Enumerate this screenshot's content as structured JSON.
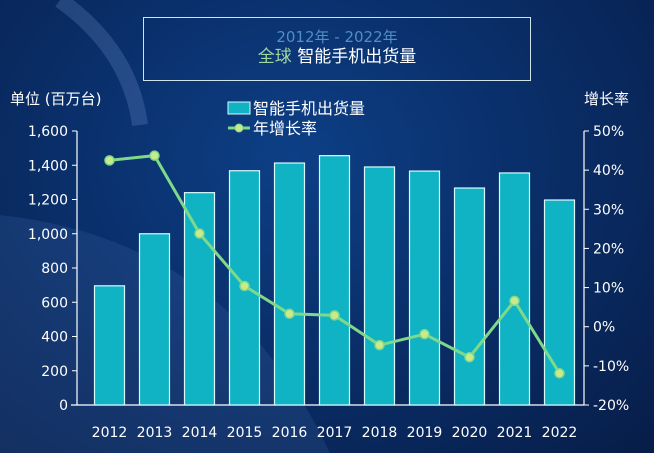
{
  "title": {
    "line1": "2012年 - 2022年",
    "line2_highlight": "全球",
    "line2_rest": " 智能手机出货量"
  },
  "chart_data": {
    "type": "bar",
    "categories": [
      "2012",
      "2013",
      "2014",
      "2015",
      "2016",
      "2017",
      "2018",
      "2019",
      "2020",
      "2021",
      "2022"
    ],
    "series": [
      {
        "name": "智能手机出货量",
        "type": "bar",
        "axis": "left",
        "values": [
          696,
          1000,
          1240,
          1368,
          1413,
          1456,
          1390,
          1366,
          1267,
          1355,
          1197
        ]
      },
      {
        "name": "年增长率",
        "type": "line",
        "axis": "right",
        "values": [
          42.5,
          43.7,
          23.8,
          10.4,
          3.3,
          2.9,
          -4.7,
          -1.9,
          -7.8,
          6.6,
          -11.9
        ]
      }
    ],
    "ylabel": "单位 (百万台)",
    "y2label": "增长率",
    "ylim": [
      0,
      1600
    ],
    "y2lim": [
      -20,
      50
    ],
    "yticks": [
      "0",
      "200",
      "400",
      "600",
      "800",
      "1,000",
      "1,200",
      "1,400",
      "1,600"
    ],
    "y2ticks": [
      "-20%",
      "-10%",
      "0%",
      "10%",
      "20%",
      "30%",
      "40%",
      "50%"
    ],
    "legend": "top-center",
    "grid": false,
    "colors": {
      "bar": "#0fb3c4",
      "bar_edge": "#d8fbff",
      "line": "#7fd98a",
      "marker": "#c9e98a"
    }
  }
}
